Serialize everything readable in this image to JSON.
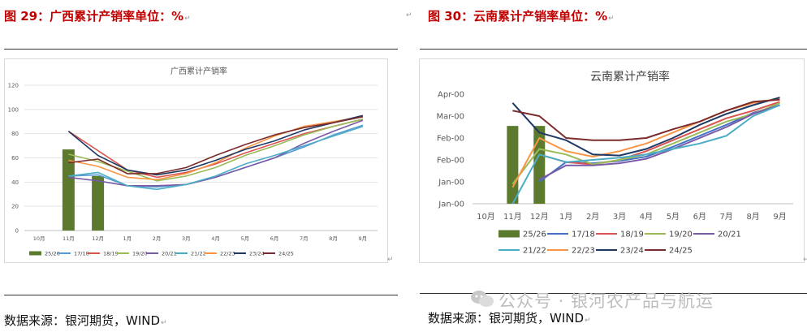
{
  "captions": {
    "left": "图 29：广西累计产销率单位：%",
    "right": "图 30：云南累计产销率单位：%",
    "mark": "↵"
  },
  "sources": {
    "left": "数据来源：银河期货，WIND",
    "right": "数据来源：银河期货，WIND"
  },
  "watermark": "公众号 · 银河农产品与航运",
  "chart_data": [
    {
      "type": "line",
      "title": "广西累计产销率",
      "categories": [
        "10月",
        "11月",
        "12月",
        "1月",
        "2月",
        "3月",
        "4月",
        "5月",
        "6月",
        "7月",
        "8月",
        "9月"
      ],
      "ylim": [
        0,
        120
      ],
      "yticks": [
        "0",
        "20",
        "40",
        "60",
        "80",
        "100",
        "120"
      ],
      "grid": true,
      "legend": "bottom",
      "bar_series": {
        "name": "25/26",
        "color": "#5b7a2e",
        "values": [
          null,
          67,
          45,
          null,
          null,
          null,
          null,
          null,
          null,
          null,
          null,
          null
        ]
      },
      "series": [
        {
          "name": "17/18",
          "color": "#5b9bd5",
          "values": [
            null,
            45,
            46,
            37,
            36,
            38,
            44,
            52,
            60,
            69,
            79,
            87
          ]
        },
        {
          "name": "18/19",
          "color": "#d9534f",
          "values": [
            null,
            82,
            66,
            50,
            44,
            48,
            55,
            64,
            72,
            80,
            86,
            92
          ]
        },
        {
          "name": "19/20",
          "color": "#9bbb59",
          "values": [
            null,
            63,
            57,
            49,
            41,
            45,
            52,
            62,
            70,
            79,
            86,
            92
          ]
        },
        {
          "name": "20/21",
          "color": "#7a5aa8",
          "values": [
            null,
            44,
            41,
            37,
            37,
            38,
            44,
            52,
            60,
            72,
            82,
            91
          ]
        },
        {
          "name": "21/22",
          "color": "#4bacc6",
          "values": [
            null,
            45,
            48,
            37,
            34,
            38,
            45,
            55,
            62,
            70,
            78,
            86
          ]
        },
        {
          "name": "22/23",
          "color": "#f79646",
          "values": [
            null,
            58,
            53,
            44,
            42,
            47,
            56,
            68,
            78,
            86,
            90,
            94
          ]
        },
        {
          "name": "23/24",
          "color": "#1f3864",
          "values": [
            null,
            82,
            62,
            50,
            46,
            50,
            58,
            67,
            74,
            83,
            89,
            95
          ]
        },
        {
          "name": "24/25",
          "color": "#7b2b2b",
          "values": [
            null,
            56,
            59,
            47,
            47,
            52,
            62,
            71,
            79,
            85,
            89,
            94
          ]
        }
      ]
    },
    {
      "type": "line",
      "title": "云南累计产销率",
      "categories": [
        "10月",
        "11月",
        "12月",
        "1月",
        "2月",
        "3月",
        "4月",
        "5月",
        "6月",
        "7月",
        "8月",
        "9月"
      ],
      "ylim": [
        0,
        100
      ],
      "yticks": [
        "Jan-00",
        "Jan-00",
        "Feb-00",
        "Feb-00",
        "Mar-00",
        "Apr-00"
      ],
      "grid": false,
      "legend": "bottom",
      "bar_series": {
        "name": "25/26",
        "color": "#5b7a2e",
        "values": [
          null,
          71,
          71,
          null,
          null,
          null,
          null,
          null,
          null,
          null,
          null,
          null
        ]
      },
      "series": [
        {
          "name": "17/18",
          "color": "#4472c4",
          "values": [
            null,
            null,
            20,
            38,
            37,
            39,
            43,
            52,
            62,
            72,
            83,
            90
          ]
        },
        {
          "name": "18/19",
          "color": "#d9534f",
          "values": [
            null,
            null,
            45,
            38,
            36,
            40,
            48,
            58,
            68,
            78,
            85,
            93
          ]
        },
        {
          "name": "19/20",
          "color": "#9bbb59",
          "values": [
            null,
            18,
            50,
            45,
            36,
            40,
            45,
            55,
            65,
            75,
            82,
            92
          ]
        },
        {
          "name": "20/21",
          "color": "#7a5aa8",
          "values": [
            null,
            null,
            22,
            35,
            35,
            37,
            41,
            50,
            60,
            70,
            82,
            90
          ]
        },
        {
          "name": "21/22",
          "color": "#4bacc6",
          "values": [
            null,
            0,
            45,
            38,
            40,
            42,
            45,
            50,
            55,
            62,
            80,
            90
          ]
        },
        {
          "name": "22/23",
          "color": "#f79646",
          "values": [
            null,
            15,
            60,
            48,
            43,
            48,
            55,
            65,
            75,
            85,
            92,
            96
          ]
        },
        {
          "name": "23/24",
          "color": "#1f3864",
          "values": [
            null,
            92,
            65,
            58,
            45,
            44,
            50,
            60,
            72,
            82,
            90,
            97
          ]
        },
        {
          "name": "24/25",
          "color": "#7b2b2b",
          "values": [
            null,
            85,
            80,
            60,
            58,
            58,
            60,
            68,
            75,
            85,
            93,
            95
          ]
        }
      ]
    }
  ]
}
